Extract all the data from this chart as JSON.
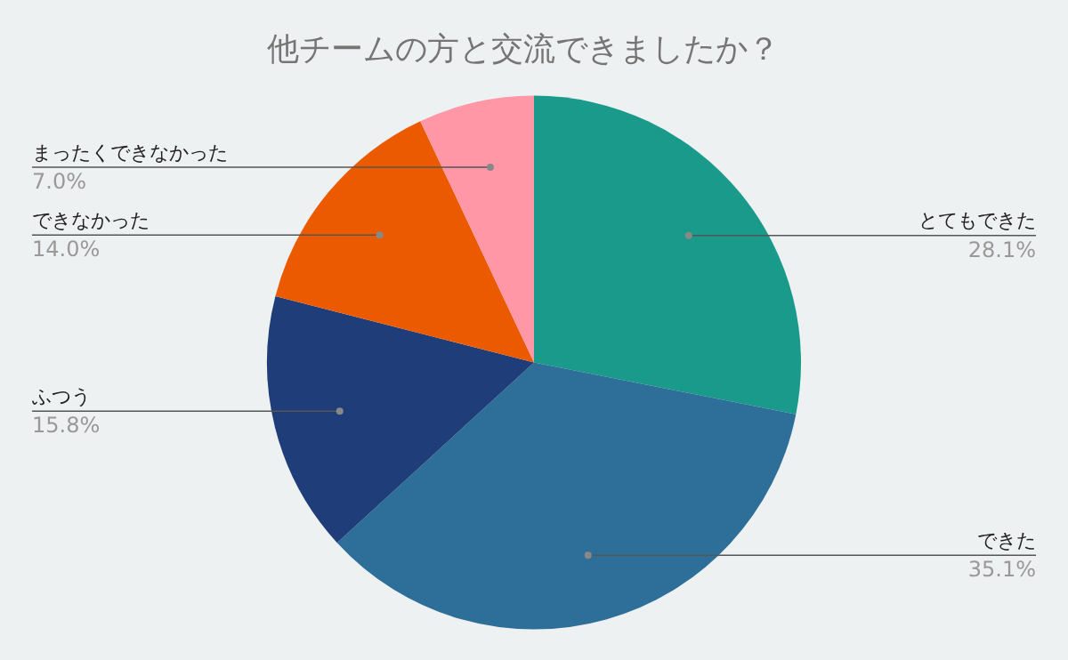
{
  "chart_data": {
    "type": "pie",
    "title": "他チームの方と交流できましたか？",
    "categories": [
      "とてもできた",
      "できた",
      "ふつう",
      "できなかった",
      "まったくできなかった"
    ],
    "values": [
      28.1,
      35.1,
      15.8,
      14.0,
      7.0
    ],
    "value_labels": [
      "28.1%",
      "35.1%",
      "15.8%",
      "14.0%",
      "7.0%"
    ],
    "colors": [
      "#1a9a8a",
      "#2e6f9a",
      "#1f3d78",
      "#ec5a00",
      "#ff97a6"
    ],
    "legend": false
  }
}
